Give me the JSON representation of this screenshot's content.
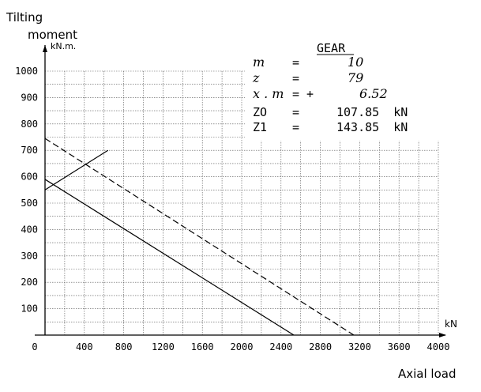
{
  "chart_data": {
    "type": "line",
    "y_axis_title_line1": "Tilting",
    "y_axis_title_line2": "moment",
    "y_unit": "kN.m.",
    "x_unit": "kN",
    "xlabel": "Axial load",
    "xlim": [
      0,
      4000
    ],
    "ylim": [
      0,
      1000
    ],
    "x_ticks": [
      "0",
      "400",
      "800",
      "1200",
      "1600",
      "2000",
      "2400",
      "2800",
      "3200",
      "3600",
      "4000"
    ],
    "y_ticks": [
      "100",
      "200",
      "300",
      "400",
      "500",
      "600",
      "700",
      "800",
      "900",
      "1000"
    ],
    "grid": true,
    "series": [
      {
        "style": "solid",
        "x": [
          0,
          2530
        ],
        "y": [
          590,
          0
        ]
      },
      {
        "style": "dashed",
        "x": [
          0,
          3140
        ],
        "y": [
          745,
          0
        ]
      },
      {
        "style": "solid",
        "x": [
          0,
          640
        ],
        "y": [
          550,
          700
        ]
      }
    ],
    "gear_table": {
      "title": "GEAR",
      "rows": [
        {
          "name": "m",
          "eq": "=",
          "value": "10"
        },
        {
          "name": "z",
          "eq": "=",
          "value": "79"
        },
        {
          "name": "x . m",
          "eq": "= +",
          "value": "6.52"
        },
        {
          "name": "ZO",
          "eq": "=",
          "value": "107.85  kN"
        },
        {
          "name": "Z1",
          "eq": "=",
          "value": "143.85  kN"
        }
      ]
    }
  }
}
